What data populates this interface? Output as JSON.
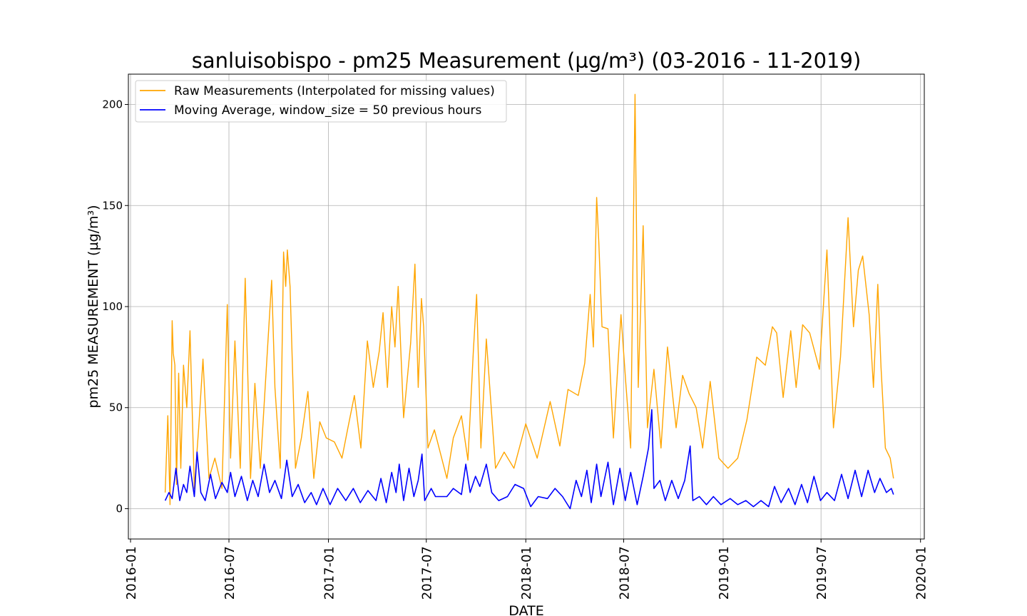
{
  "chart_data": {
    "type": "line",
    "title": "sanluisobispo - pm25 Measurement (µg/m³) (03-2016 - 11-2019)",
    "xlabel": "DATE",
    "ylabel": "pm25 MEASUREMENT (µg/m³)",
    "x_range": [
      "2015-12-28",
      "2020-01-08"
    ],
    "ylim": [
      -15,
      215
    ],
    "grid": true,
    "legend_position": "top-left",
    "x_ticks": [
      "2016-01",
      "2016-07",
      "2017-01",
      "2017-07",
      "2018-01",
      "2018-07",
      "2019-01",
      "2019-07",
      "2020-01"
    ],
    "y_ticks": [
      0,
      50,
      100,
      150,
      200
    ],
    "series": [
      {
        "name": "Raw Measurements (Interpolated for missing values)",
        "color": "#ffa500",
        "points": [
          [
            "2016-03-05",
            8
          ],
          [
            "2016-03-10",
            46
          ],
          [
            "2016-03-14",
            2
          ],
          [
            "2016-03-18",
            93
          ],
          [
            "2016-03-20",
            77
          ],
          [
            "2016-03-23",
            71
          ],
          [
            "2016-03-26",
            12
          ],
          [
            "2016-03-30",
            67
          ],
          [
            "2016-04-03",
            20
          ],
          [
            "2016-04-08",
            71
          ],
          [
            "2016-04-14",
            50
          ],
          [
            "2016-04-20",
            88
          ],
          [
            "2016-04-28",
            10
          ],
          [
            "2016-05-06",
            40
          ],
          [
            "2016-05-14",
            74
          ],
          [
            "2016-05-25",
            15
          ],
          [
            "2016-06-05",
            25
          ],
          [
            "2016-06-18",
            10
          ],
          [
            "2016-06-28",
            101
          ],
          [
            "2016-07-04",
            25
          ],
          [
            "2016-07-12",
            83
          ],
          [
            "2016-07-22",
            20
          ],
          [
            "2016-07-31",
            114
          ],
          [
            "2016-08-10",
            15
          ],
          [
            "2016-08-18",
            62
          ],
          [
            "2016-08-28",
            20
          ],
          [
            "2016-09-06",
            60
          ],
          [
            "2016-09-18",
            113
          ],
          [
            "2016-09-24",
            60
          ],
          [
            "2016-10-04",
            20
          ],
          [
            "2016-10-10",
            127
          ],
          [
            "2016-10-14",
            110
          ],
          [
            "2016-10-17",
            128
          ],
          [
            "2016-10-22",
            110
          ],
          [
            "2016-11-01",
            20
          ],
          [
            "2016-11-12",
            35
          ],
          [
            "2016-11-24",
            58
          ],
          [
            "2016-12-05",
            15
          ],
          [
            "2016-12-16",
            43
          ],
          [
            "2016-12-28",
            35
          ],
          [
            "2017-01-12",
            33
          ],
          [
            "2017-01-26",
            25
          ],
          [
            "2017-02-06",
            40
          ],
          [
            "2017-02-18",
            56
          ],
          [
            "2017-03-02",
            30
          ],
          [
            "2017-03-14",
            83
          ],
          [
            "2017-03-25",
            60
          ],
          [
            "2017-04-05",
            78
          ],
          [
            "2017-04-12",
            97
          ],
          [
            "2017-04-20",
            60
          ],
          [
            "2017-04-28",
            100
          ],
          [
            "2017-05-04",
            80
          ],
          [
            "2017-05-10",
            110
          ],
          [
            "2017-05-20",
            45
          ],
          [
            "2017-06-02",
            82
          ],
          [
            "2017-06-10",
            121
          ],
          [
            "2017-06-16",
            60
          ],
          [
            "2017-06-22",
            104
          ],
          [
            "2017-06-26",
            90
          ],
          [
            "2017-07-04",
            30
          ],
          [
            "2017-07-16",
            39
          ],
          [
            "2017-08-08",
            15
          ],
          [
            "2017-08-20",
            35
          ],
          [
            "2017-09-04",
            46
          ],
          [
            "2017-09-16",
            24
          ],
          [
            "2017-09-26",
            78
          ],
          [
            "2017-10-02",
            106
          ],
          [
            "2017-10-10",
            30
          ],
          [
            "2017-10-20",
            84
          ],
          [
            "2017-11-06",
            20
          ],
          [
            "2017-11-22",
            28
          ],
          [
            "2017-12-10",
            20
          ],
          [
            "2018-01-01",
            42
          ],
          [
            "2018-01-22",
            25
          ],
          [
            "2018-02-15",
            53
          ],
          [
            "2018-03-05",
            31
          ],
          [
            "2018-03-20",
            59
          ],
          [
            "2018-04-08",
            56
          ],
          [
            "2018-04-20",
            72
          ],
          [
            "2018-04-30",
            106
          ],
          [
            "2018-05-06",
            80
          ],
          [
            "2018-05-12",
            154
          ],
          [
            "2018-05-16",
            132
          ],
          [
            "2018-05-22",
            90
          ],
          [
            "2018-06-02",
            89
          ],
          [
            "2018-06-12",
            35
          ],
          [
            "2018-06-26",
            96
          ],
          [
            "2018-07-05",
            62
          ],
          [
            "2018-07-14",
            30
          ],
          [
            "2018-07-22",
            205
          ],
          [
            "2018-07-28",
            60
          ],
          [
            "2018-08-06",
            140
          ],
          [
            "2018-08-14",
            40
          ],
          [
            "2018-08-26",
            69
          ],
          [
            "2018-09-08",
            30
          ],
          [
            "2018-09-20",
            80
          ],
          [
            "2018-10-06",
            40
          ],
          [
            "2018-10-18",
            66
          ],
          [
            "2018-10-30",
            57
          ],
          [
            "2018-11-12",
            50
          ],
          [
            "2018-11-24",
            30
          ],
          [
            "2018-12-08",
            63
          ],
          [
            "2018-12-24",
            25
          ],
          [
            "2019-01-10",
            20
          ],
          [
            "2019-01-28",
            25
          ],
          [
            "2019-02-14",
            44
          ],
          [
            "2019-03-04",
            75
          ],
          [
            "2019-03-20",
            71
          ],
          [
            "2019-04-02",
            90
          ],
          [
            "2019-04-10",
            87
          ],
          [
            "2019-04-22",
            55
          ],
          [
            "2019-05-06",
            88
          ],
          [
            "2019-05-16",
            60
          ],
          [
            "2019-05-28",
            91
          ],
          [
            "2019-06-10",
            87
          ],
          [
            "2019-06-28",
            69
          ],
          [
            "2019-07-12",
            128
          ],
          [
            "2019-07-24",
            40
          ],
          [
            "2019-08-06",
            75
          ],
          [
            "2019-08-20",
            144
          ],
          [
            "2019-08-30",
            90
          ],
          [
            "2019-09-08",
            118
          ],
          [
            "2019-09-16",
            125
          ],
          [
            "2019-09-28",
            96
          ],
          [
            "2019-10-06",
            60
          ],
          [
            "2019-10-14",
            111
          ],
          [
            "2019-10-20",
            70
          ],
          [
            "2019-10-28",
            30
          ],
          [
            "2019-11-06",
            25
          ],
          [
            "2019-11-12",
            15
          ]
        ]
      },
      {
        "name": "Moving Average, window_size = 50 previous hours",
        "color": "#0000ff",
        "points": [
          [
            "2016-03-05",
            4
          ],
          [
            "2016-03-12",
            8
          ],
          [
            "2016-03-18",
            5
          ],
          [
            "2016-03-25",
            20
          ],
          [
            "2016-04-01",
            4
          ],
          [
            "2016-04-08",
            12
          ],
          [
            "2016-04-14",
            8
          ],
          [
            "2016-04-20",
            21
          ],
          [
            "2016-04-28",
            6
          ],
          [
            "2016-05-03",
            28
          ],
          [
            "2016-05-10",
            8
          ],
          [
            "2016-05-18",
            4
          ],
          [
            "2016-05-28",
            17
          ],
          [
            "2016-06-06",
            5
          ],
          [
            "2016-06-18",
            13
          ],
          [
            "2016-06-28",
            8
          ],
          [
            "2016-07-04",
            18
          ],
          [
            "2016-07-12",
            6
          ],
          [
            "2016-07-24",
            16
          ],
          [
            "2016-08-04",
            4
          ],
          [
            "2016-08-14",
            14
          ],
          [
            "2016-08-24",
            6
          ],
          [
            "2016-09-04",
            22
          ],
          [
            "2016-09-14",
            8
          ],
          [
            "2016-09-24",
            14
          ],
          [
            "2016-10-06",
            5
          ],
          [
            "2016-10-16",
            24
          ],
          [
            "2016-10-26",
            6
          ],
          [
            "2016-11-06",
            12
          ],
          [
            "2016-11-18",
            3
          ],
          [
            "2016-11-30",
            8
          ],
          [
            "2016-12-10",
            2
          ],
          [
            "2016-12-22",
            10
          ],
          [
            "2017-01-04",
            2
          ],
          [
            "2017-01-18",
            10
          ],
          [
            "2017-02-02",
            4
          ],
          [
            "2017-02-16",
            10
          ],
          [
            "2017-03-01",
            3
          ],
          [
            "2017-03-15",
            9
          ],
          [
            "2017-03-30",
            4
          ],
          [
            "2017-04-08",
            15
          ],
          [
            "2017-04-18",
            3
          ],
          [
            "2017-04-28",
            18
          ],
          [
            "2017-05-06",
            8
          ],
          [
            "2017-05-12",
            22
          ],
          [
            "2017-05-20",
            4
          ],
          [
            "2017-05-30",
            20
          ],
          [
            "2017-06-08",
            6
          ],
          [
            "2017-06-16",
            14
          ],
          [
            "2017-06-23",
            27
          ],
          [
            "2017-06-28",
            4
          ],
          [
            "2017-07-10",
            10
          ],
          [
            "2017-07-18",
            6
          ],
          [
            "2017-07-24",
            6
          ],
          [
            "2017-08-08",
            6
          ],
          [
            "2017-08-20",
            10
          ],
          [
            "2017-09-04",
            7
          ],
          [
            "2017-09-12",
            22
          ],
          [
            "2017-09-20",
            8
          ],
          [
            "2017-09-30",
            16
          ],
          [
            "2017-10-08",
            11
          ],
          [
            "2017-10-20",
            22
          ],
          [
            "2017-10-30",
            8
          ],
          [
            "2017-11-12",
            4
          ],
          [
            "2017-11-28",
            6
          ],
          [
            "2017-12-12",
            12
          ],
          [
            "2017-12-28",
            10
          ],
          [
            "2018-01-10",
            1
          ],
          [
            "2018-01-24",
            6
          ],
          [
            "2018-02-10",
            5
          ],
          [
            "2018-02-24",
            10
          ],
          [
            "2018-03-10",
            6
          ],
          [
            "2018-03-24",
            0
          ],
          [
            "2018-04-04",
            14
          ],
          [
            "2018-04-14",
            6
          ],
          [
            "2018-04-24",
            19
          ],
          [
            "2018-05-02",
            3
          ],
          [
            "2018-05-12",
            22
          ],
          [
            "2018-05-20",
            6
          ],
          [
            "2018-06-02",
            23
          ],
          [
            "2018-06-12",
            2
          ],
          [
            "2018-06-24",
            20
          ],
          [
            "2018-07-04",
            4
          ],
          [
            "2018-07-14",
            18
          ],
          [
            "2018-07-26",
            2
          ],
          [
            "2018-08-06",
            16
          ],
          [
            "2018-08-16",
            30
          ],
          [
            "2018-08-22",
            49
          ],
          [
            "2018-08-26",
            10
          ],
          [
            "2018-09-06",
            14
          ],
          [
            "2018-09-16",
            4
          ],
          [
            "2018-09-28",
            14
          ],
          [
            "2018-10-10",
            5
          ],
          [
            "2018-10-22",
            14
          ],
          [
            "2018-11-01",
            31
          ],
          [
            "2018-11-06",
            4
          ],
          [
            "2018-11-18",
            6
          ],
          [
            "2018-12-01",
            2
          ],
          [
            "2018-12-14",
            6
          ],
          [
            "2018-12-28",
            2
          ],
          [
            "2019-01-14",
            5
          ],
          [
            "2019-01-28",
            2
          ],
          [
            "2019-02-12",
            4
          ],
          [
            "2019-02-26",
            1
          ],
          [
            "2019-03-12",
            4
          ],
          [
            "2019-03-26",
            1
          ],
          [
            "2019-04-06",
            11
          ],
          [
            "2019-04-18",
            3
          ],
          [
            "2019-05-02",
            10
          ],
          [
            "2019-05-14",
            2
          ],
          [
            "2019-05-26",
            12
          ],
          [
            "2019-06-06",
            3
          ],
          [
            "2019-06-18",
            16
          ],
          [
            "2019-06-30",
            4
          ],
          [
            "2019-07-12",
            8
          ],
          [
            "2019-07-26",
            4
          ],
          [
            "2019-08-08",
            17
          ],
          [
            "2019-08-20",
            5
          ],
          [
            "2019-09-02",
            19
          ],
          [
            "2019-09-14",
            6
          ],
          [
            "2019-09-26",
            19
          ],
          [
            "2019-10-08",
            8
          ],
          [
            "2019-10-18",
            15
          ],
          [
            "2019-10-30",
            8
          ],
          [
            "2019-11-08",
            10
          ],
          [
            "2019-11-12",
            7
          ]
        ]
      }
    ]
  }
}
